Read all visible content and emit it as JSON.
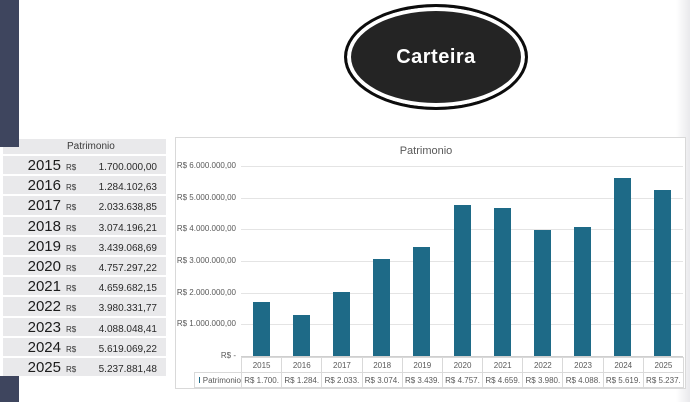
{
  "badge": {
    "label": "Carteira",
    "fill": "#242424",
    "border": "#0c0c0c",
    "ring": "#ffffff",
    "text_color": "#ffffff"
  },
  "colors": {
    "sidebar_accent": "#3e455e",
    "table_background": "#e9e9eb",
    "bar": "#1e6a87",
    "chart_border": "#d9d9d9",
    "chart_text": "#595959"
  },
  "table": {
    "header": "Patrimonio",
    "currency_symbol": "R$",
    "rows": [
      {
        "year": "2015",
        "value": "1.700.000,00"
      },
      {
        "year": "2016",
        "value": "1.284.102,63"
      },
      {
        "year": "2017",
        "value": "2.033.638,85"
      },
      {
        "year": "2018",
        "value": "3.074.196,21"
      },
      {
        "year": "2019",
        "value": "3.439.068,69"
      },
      {
        "year": "2020",
        "value": "4.757.297,22"
      },
      {
        "year": "2021",
        "value": "4.659.682,15"
      },
      {
        "year": "2022",
        "value": "3.980.331,77"
      },
      {
        "year": "2023",
        "value": "4.088.048,41"
      },
      {
        "year": "2024",
        "value": "5.619.069,22"
      },
      {
        "year": "2025",
        "value": "5.237.881,48"
      }
    ]
  },
  "chart_data": {
    "type": "bar",
    "title": "Patrimonio",
    "categories": [
      "2015",
      "2016",
      "2017",
      "2018",
      "2019",
      "2020",
      "2021",
      "2022",
      "2023",
      "2024",
      "2025"
    ],
    "values": [
      1700000.0,
      1284102.63,
      2033638.85,
      3074196.21,
      3439068.69,
      4757297.22,
      4659682.15,
      3980331.77,
      4088048.41,
      5619069.22,
      5237881.48
    ],
    "value_labels": [
      "R$ 1.700.",
      "R$ 1.284.",
      "R$ 2.033.",
      "R$ 3.074.",
      "R$ 3.439.",
      "R$ 4.757.",
      "R$ 4.659.",
      "R$ 3.980.",
      "R$ 4.088.",
      "R$ 5.619.",
      "R$ 5.237."
    ],
    "y_ticks": [
      "R$ 6.000.000,00",
      "R$ 5.000.000,00",
      "R$ 4.000.000,00",
      "R$ 3.000.000,00",
      "R$ 2.000.000,00",
      "R$ 1.000.000,00",
      "R$ -"
    ],
    "ylim": [
      0,
      6000000
    ],
    "legend": "Patrimonio",
    "legend_position": "bottom-table",
    "grid": true,
    "bar_color": "#1e6a87"
  }
}
